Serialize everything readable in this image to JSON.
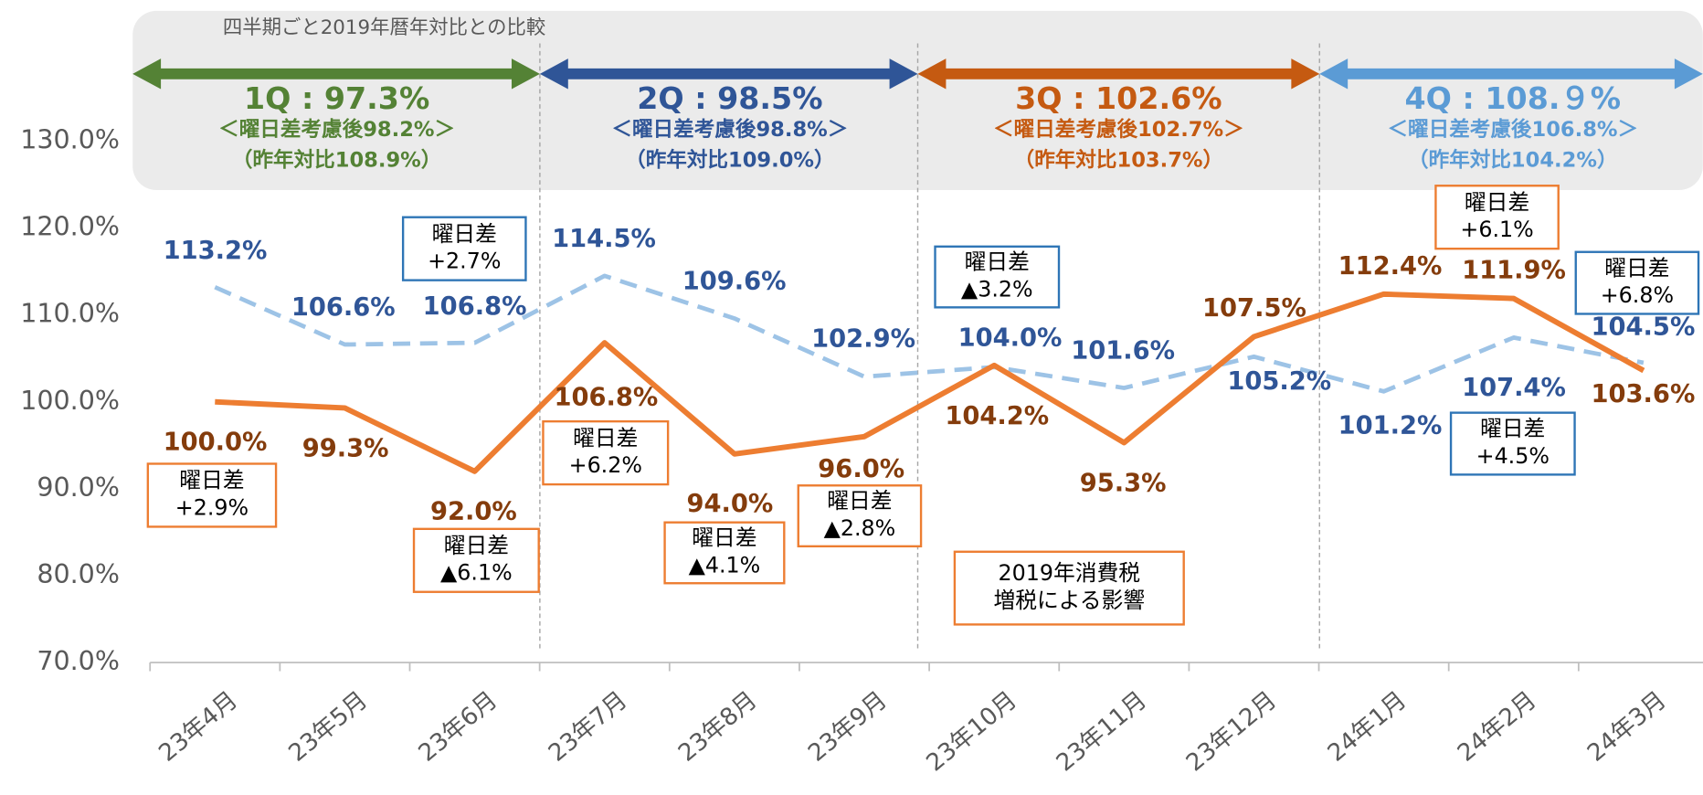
{
  "chart_data": {
    "type": "line",
    "title": "四半期ごと2019年暦年対比との比較",
    "categories": [
      "23年4月",
      "23年5月",
      "23年6月",
      "23年7月",
      "23年8月",
      "23年9月",
      "23年10月",
      "23年11月",
      "23年12月",
      "24年1月",
      "24年2月",
      "24年3月"
    ],
    "series": [
      {
        "color": "#9dc3e6",
        "line_style": "dashed",
        "label_color": "#2f5597",
        "values": [
          113.2,
          106.6,
          106.8,
          114.5,
          109.6,
          102.9,
          104.0,
          101.6,
          105.2,
          101.2,
          107.4,
          104.5
        ],
        "value_labels": [
          "113.2%",
          "106.6%",
          "106.8%",
          "114.5%",
          "109.6%",
          "102.9%",
          "104.0%",
          "101.6%",
          "105.2%",
          "101.2%",
          "107.4%",
          "104.5%"
        ]
      },
      {
        "color": "#ed7d31",
        "line_style": "solid",
        "label_color": "#843c0c",
        "values": [
          100.0,
          99.3,
          92.0,
          106.8,
          94.0,
          96.0,
          104.2,
          95.3,
          107.5,
          112.4,
          111.9,
          103.6
        ],
        "value_labels": [
          "100.0%",
          "99.3%",
          "92.0%",
          "106.8%",
          "94.0%",
          "96.0%",
          "104.2%",
          "95.3%",
          "107.5%",
          "112.4%",
          "111.9%",
          "103.6%"
        ]
      }
    ],
    "ylim": [
      70,
      145
    ],
    "yticks": [
      {
        "value": 70,
        "label": "70.0%"
      },
      {
        "value": 80,
        "label": "80.0%"
      },
      {
        "value": 90,
        "label": "90.0%"
      },
      {
        "value": 100,
        "label": "100.0%"
      },
      {
        "value": 110,
        "label": "110.0%"
      },
      {
        "value": 120,
        "label": "120.0%"
      },
      {
        "value": 130,
        "label": "130.0%"
      }
    ],
    "grid": false,
    "quarters": [
      {
        "label": "1Q : 97.3%",
        "adjusted": "＜曜日差考慮後98.2%＞",
        "yoy": "（昨年対比108.9%）",
        "color": "#548235"
      },
      {
        "label": "2Q : 98.5%",
        "adjusted": "＜曜日差考慮後98.8%＞",
        "yoy": "（昨年対比109.0%）",
        "color": "#2f5597"
      },
      {
        "label": "3Q : 102.6%",
        "adjusted": "＜曜日差考慮後102.7%＞",
        "yoy": "（昨年対比103.7%）",
        "color": "#c55a11"
      },
      {
        "label": "4Q : 108.９%",
        "adjusted": "＜曜日差考慮後106.8%＞",
        "yoy": "（昨年対比104.2%）",
        "color": "#5b9bd5"
      }
    ],
    "callouts": [
      {
        "lines": [
          "曜日差",
          "+2.9%"
        ],
        "color": "#ed7d31"
      },
      {
        "lines": [
          "曜日差",
          "▲6.1%"
        ],
        "color": "#ed7d31"
      },
      {
        "lines": [
          "曜日差",
          "+6.2%"
        ],
        "color": "#ed7d31"
      },
      {
        "lines": [
          "曜日差",
          "▲4.1%"
        ],
        "color": "#ed7d31"
      },
      {
        "lines": [
          "曜日差",
          "▲2.8%"
        ],
        "color": "#ed7d31"
      },
      {
        "lines": [
          "2019年消費税",
          "増税による影響"
        ],
        "color": "#ed7d31"
      },
      {
        "lines": [
          "曜日差",
          "+6.1%"
        ],
        "color": "#ed7d31"
      },
      {
        "lines": [
          "曜日差",
          "+2.7%"
        ],
        "color": "#2e75b6"
      },
      {
        "lines": [
          "曜日差",
          "▲3.2%"
        ],
        "color": "#2e75b6"
      },
      {
        "lines": [
          "曜日差",
          "+4.5%"
        ],
        "color": "#2e75b6"
      },
      {
        "lines": [
          "曜日差",
          "+6.8%"
        ],
        "color": "#2e75b6"
      }
    ]
  }
}
